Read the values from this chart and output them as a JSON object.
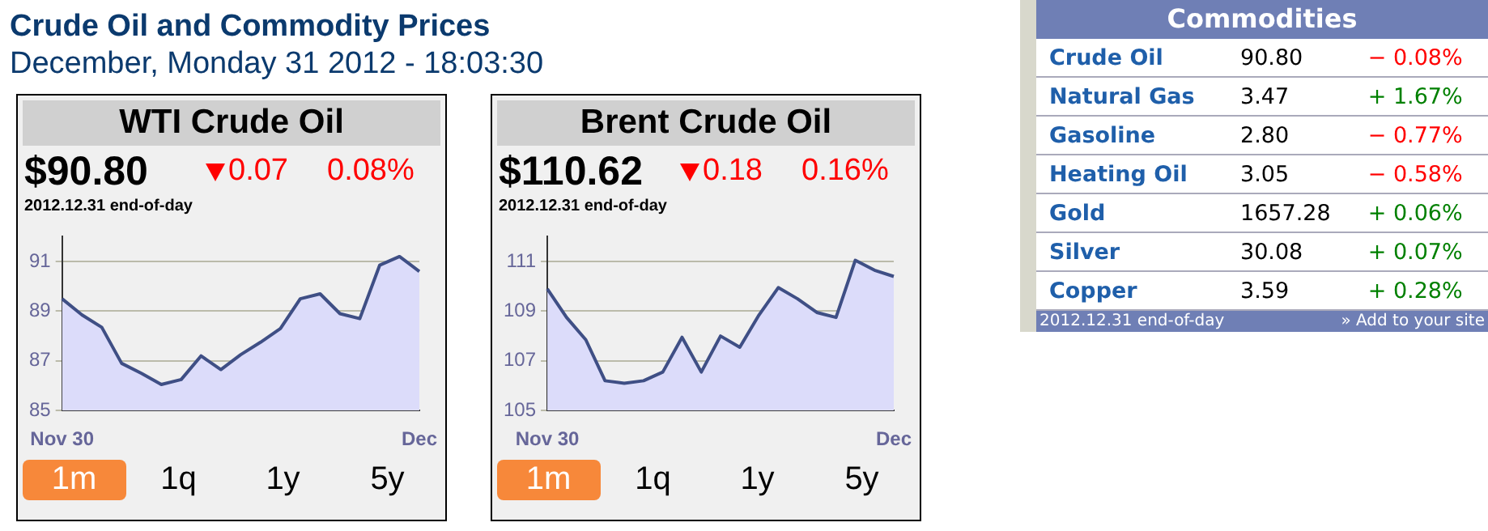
{
  "chart_data": [
    {
      "type": "area",
      "title": "WTI Crude Oil",
      "categories": [
        "Nov 30",
        null,
        null,
        null,
        null,
        null,
        null,
        null,
        null,
        null,
        null,
        null,
        null,
        null,
        null,
        null,
        null,
        null,
        "Dec"
      ],
      "series": [
        {
          "color": "#3f4f85",
          "values": [
            89.5,
            88.85,
            88.35,
            86.9,
            86.5,
            86.05,
            86.25,
            87.2,
            86.65,
            87.25,
            87.75,
            88.3,
            89.5,
            89.7,
            88.9,
            88.7,
            90.85,
            91.2,
            90.6
          ]
        }
      ],
      "ylim": [
        85,
        92
      ],
      "yticks": [
        85,
        87,
        89,
        91
      ],
      "grid": "y",
      "legend": false,
      "annotations": [
        "Crude Oil and Commodity Prices",
        "December, Monday 31 2012 - 18:03:30",
        "$90.80",
        "0.07",
        "0.08%",
        "2012.12.31 end-of-day",
        "1m",
        "1q",
        "1y",
        "5y"
      ]
    },
    {
      "type": "area",
      "title": "Brent Crude Oil",
      "categories": [
        "Nov 30",
        null,
        null,
        null,
        null,
        null,
        null,
        null,
        null,
        null,
        null,
        null,
        null,
        null,
        null,
        null,
        null,
        null,
        "Dec"
      ],
      "series": [
        {
          "color": "#3f4f85",
          "values": [
            109.9,
            108.75,
            107.85,
            106.2,
            106.1,
            106.2,
            106.55,
            107.95,
            106.55,
            108.0,
            107.55,
            108.85,
            109.95,
            109.5,
            108.95,
            108.75,
            111.05,
            110.65,
            110.4
          ]
        }
      ],
      "ylim": [
        105,
        112
      ],
      "yticks": [
        105,
        107,
        109,
        111
      ],
      "grid": "y",
      "legend": false,
      "annotations": [
        "$110.62",
        "0.18",
        "0.16%",
        "2012.12.31 end-of-day",
        "1m",
        "1q",
        "1y",
        "5y"
      ]
    },
    {
      "type": "other",
      "title": "Commodities",
      "categories": [
        "Crude Oil",
        "Natural Gas",
        "Gasoline",
        "Heating Oil",
        "Gold",
        "Silver",
        "Copper"
      ],
      "series": [
        {
          "color": "#000000",
          "values": [
            90.8,
            3.47,
            2.8,
            3.05,
            1657.28,
            30.08,
            3.59
          ],
          "value_labels": [
            "90.80",
            "3.47",
            "2.80",
            "3.05",
            "1657.28",
            "30.08",
            "3.59"
          ]
        },
        {
          "colors": [
            "#ff0000",
            "#008000",
            "#ff0000",
            "#ff0000",
            "#008000",
            "#008000",
            "#008000"
          ],
          "values": [
            -0.08,
            1.67,
            -0.77,
            -0.58,
            0.06,
            0.07,
            0.28
          ],
          "value_labels": [
            "− 0.08%",
            "+ 1.67%",
            "− 0.77%",
            "− 0.58%",
            "+ 0.06%",
            "+ 0.07%",
            "+ 0.28%"
          ]
        }
      ],
      "annotations": [
        "2012.12.31 end-of-day",
        "» Add to your site"
      ]
    }
  ]
}
